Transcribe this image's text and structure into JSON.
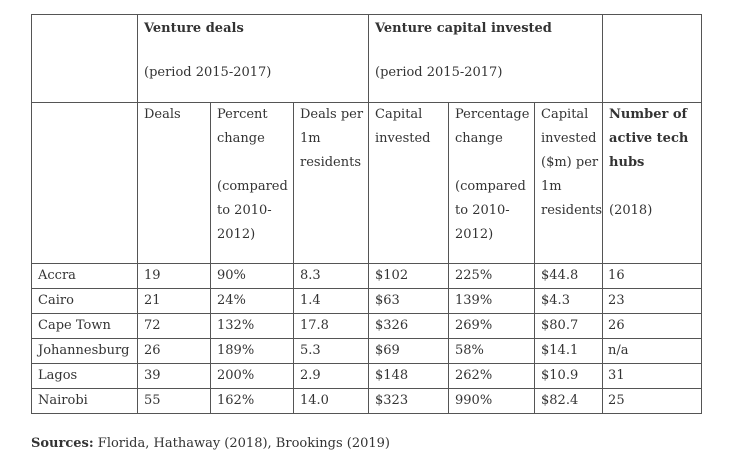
{
  "groups": {
    "deals": {
      "title": "Venture deals",
      "period": "(period 2015-2017)"
    },
    "capital": {
      "title": "Venture capital invested",
      "period": "(period 2015-2017)"
    }
  },
  "columns": {
    "deals": [
      "Deals"
    ],
    "deals_pct": [
      "Percent",
      "change",
      "",
      "(compared",
      "to 2010-",
      "2012)"
    ],
    "deals_per_1m": [
      "Deals per",
      "1m",
      "residents"
    ],
    "capital": [
      "Capital",
      "invested"
    ],
    "capital_pct": [
      "Percentage",
      "change",
      "",
      "(compared",
      "to 2010-",
      "2012)"
    ],
    "capital_per_1m": [
      "Capital",
      "invested",
      "($m) per",
      "1m",
      "residents"
    ],
    "hubs_title": [
      "Number of",
      "active tech",
      "hubs"
    ],
    "hubs_year": "(2018)"
  },
  "rows": [
    {
      "city": "Accra",
      "deals": "19",
      "deals_pct": "90%",
      "deals_per_1m": "8.3",
      "capital": "$102",
      "capital_pct": "225%",
      "capital_per_1m": "$44.8",
      "hubs": "16"
    },
    {
      "city": "Cairo",
      "deals": "21",
      "deals_pct": "24%",
      "deals_per_1m": "1.4",
      "capital": "$63",
      "capital_pct": "139%",
      "capital_per_1m": "$4.3",
      "hubs": "23"
    },
    {
      "city": "Cape Town",
      "deals": "72",
      "deals_pct": "132%",
      "deals_per_1m": "17.8",
      "capital": "$326",
      "capital_pct": "269%",
      "capital_per_1m": "$80.7",
      "hubs": "26"
    },
    {
      "city": "Johannesburg",
      "deals": "26",
      "deals_pct": "189%",
      "deals_per_1m": "5.3",
      "capital": "$69",
      "capital_pct": "58%",
      "capital_per_1m": "$14.1",
      "hubs": "n/a"
    },
    {
      "city": "Lagos",
      "deals": "39",
      "deals_pct": "200%",
      "deals_per_1m": "2.9",
      "capital": "$148",
      "capital_pct": "262%",
      "capital_per_1m": "$10.9",
      "hubs": "31"
    },
    {
      "city": "Nairobi",
      "deals": "55",
      "deals_pct": "162%",
      "deals_per_1m": "14.0",
      "capital": "$323",
      "capital_pct": "990%",
      "capital_per_1m": "$82.4",
      "hubs": "25"
    }
  ],
  "sources": {
    "label": "Sources:",
    "text": " Florida, Hathaway (2018), Brookings (2019)"
  }
}
